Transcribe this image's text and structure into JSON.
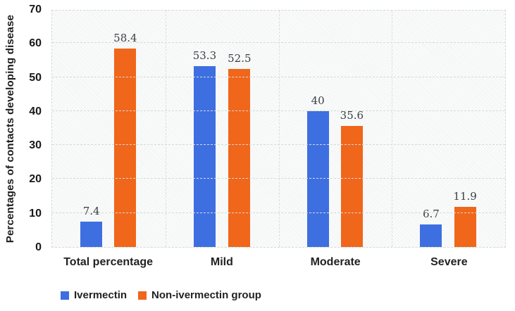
{
  "chart_data": {
    "type": "bar",
    "title": "",
    "xlabel": "",
    "ylabel": "Percentages of contacts developing disease",
    "ylim": [
      0,
      70
    ],
    "yticks": [
      0,
      10,
      20,
      30,
      40,
      50,
      60,
      70
    ],
    "grid": "horizontal and vertical light dashed gridlines, hatched plot background",
    "legend_position": "bottom-left",
    "categories": [
      "Total percentage",
      "Mild",
      "Moderate",
      "Severe"
    ],
    "series": [
      {
        "name": "Ivermectin",
        "color": "#3e6fe1",
        "values": [
          7.4,
          53.3,
          40,
          6.7
        ]
      },
      {
        "name": "Non-ivermectin group",
        "color": "#f0661a",
        "values": [
          58.4,
          52.5,
          35.6,
          11.9
        ]
      }
    ],
    "data_labels_shown": true
  },
  "colors": {
    "plot_background": "#f3f4f4",
    "gridline": "#d7d9d9",
    "axis_text": "#191919",
    "data_label_text": "#3a3f44",
    "page_background": "#ffffff"
  }
}
